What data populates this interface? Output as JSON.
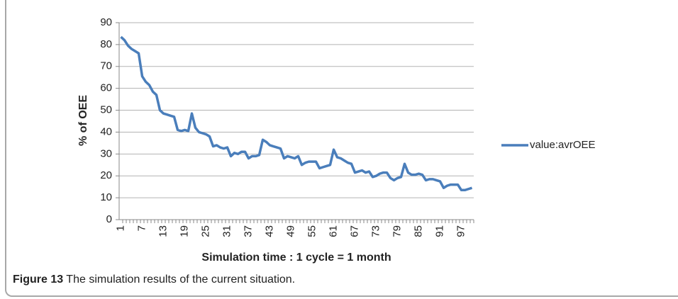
{
  "chart_data": {
    "type": "line",
    "y_label": "% of OEE",
    "x_label": "Simulation time  : 1 cycle = 1 month",
    "categories": [
      "1",
      null,
      null,
      null,
      null,
      null,
      "7",
      null,
      null,
      null,
      null,
      null,
      "13",
      null,
      null,
      null,
      null,
      null,
      "19",
      null,
      null,
      null,
      null,
      null,
      "25",
      null,
      null,
      null,
      null,
      null,
      "31",
      null,
      null,
      null,
      null,
      null,
      "37",
      null,
      null,
      null,
      null,
      null,
      "43",
      null,
      null,
      null,
      null,
      null,
      "49",
      null,
      null,
      null,
      null,
      null,
      "55",
      null,
      null,
      null,
      null,
      null,
      "61",
      null,
      null,
      null,
      null,
      null,
      "67",
      null,
      null,
      null,
      null,
      null,
      "73",
      null,
      null,
      null,
      null,
      null,
      "79",
      null,
      null,
      null,
      null,
      null,
      "85",
      null,
      null,
      null,
      null,
      null,
      "91",
      null,
      null,
      null,
      null,
      null,
      "97",
      null,
      null,
      null
    ],
    "series": [
      {
        "name": "value:avrOEE",
        "color": "#4a7ebb",
        "values": [
          83.5,
          82,
          79.5,
          78,
          77,
          76,
          65.5,
          63,
          61.5,
          58.5,
          57,
          50,
          48.5,
          48,
          47.5,
          47,
          41,
          40.5,
          41,
          40.5,
          48.5,
          42,
          40,
          39.5,
          39,
          38,
          33.5,
          34,
          33,
          32.5,
          33,
          29,
          30.5,
          30,
          31,
          31,
          28,
          29,
          29,
          29.5,
          36.5,
          35.5,
          34,
          33.5,
          33,
          32.5,
          28,
          29,
          28.5,
          28,
          29,
          25,
          26,
          26.5,
          26.5,
          26.5,
          23.5,
          24,
          24.5,
          25,
          32,
          28.5,
          28,
          27,
          26,
          25.5,
          21.5,
          22,
          22.5,
          21.5,
          22,
          19.5,
          20,
          21,
          21.5,
          21.5,
          19,
          18,
          19,
          19.5,
          25.5,
          21.5,
          20.5,
          20.5,
          21,
          20.5,
          18,
          18.5,
          18.5,
          18,
          17.5,
          14.5,
          15.5,
          16,
          16,
          16,
          13.5,
          13.5,
          14,
          14.5
        ]
      }
    ],
    "ylim": [
      0,
      90
    ],
    "yticks": [
      0,
      10,
      20,
      30,
      40,
      50,
      60,
      70,
      80,
      90
    ],
    "grid": true,
    "legend": "right"
  },
  "caption": {
    "label": "Figure 13",
    "text": "The simulation results of the current situation."
  }
}
